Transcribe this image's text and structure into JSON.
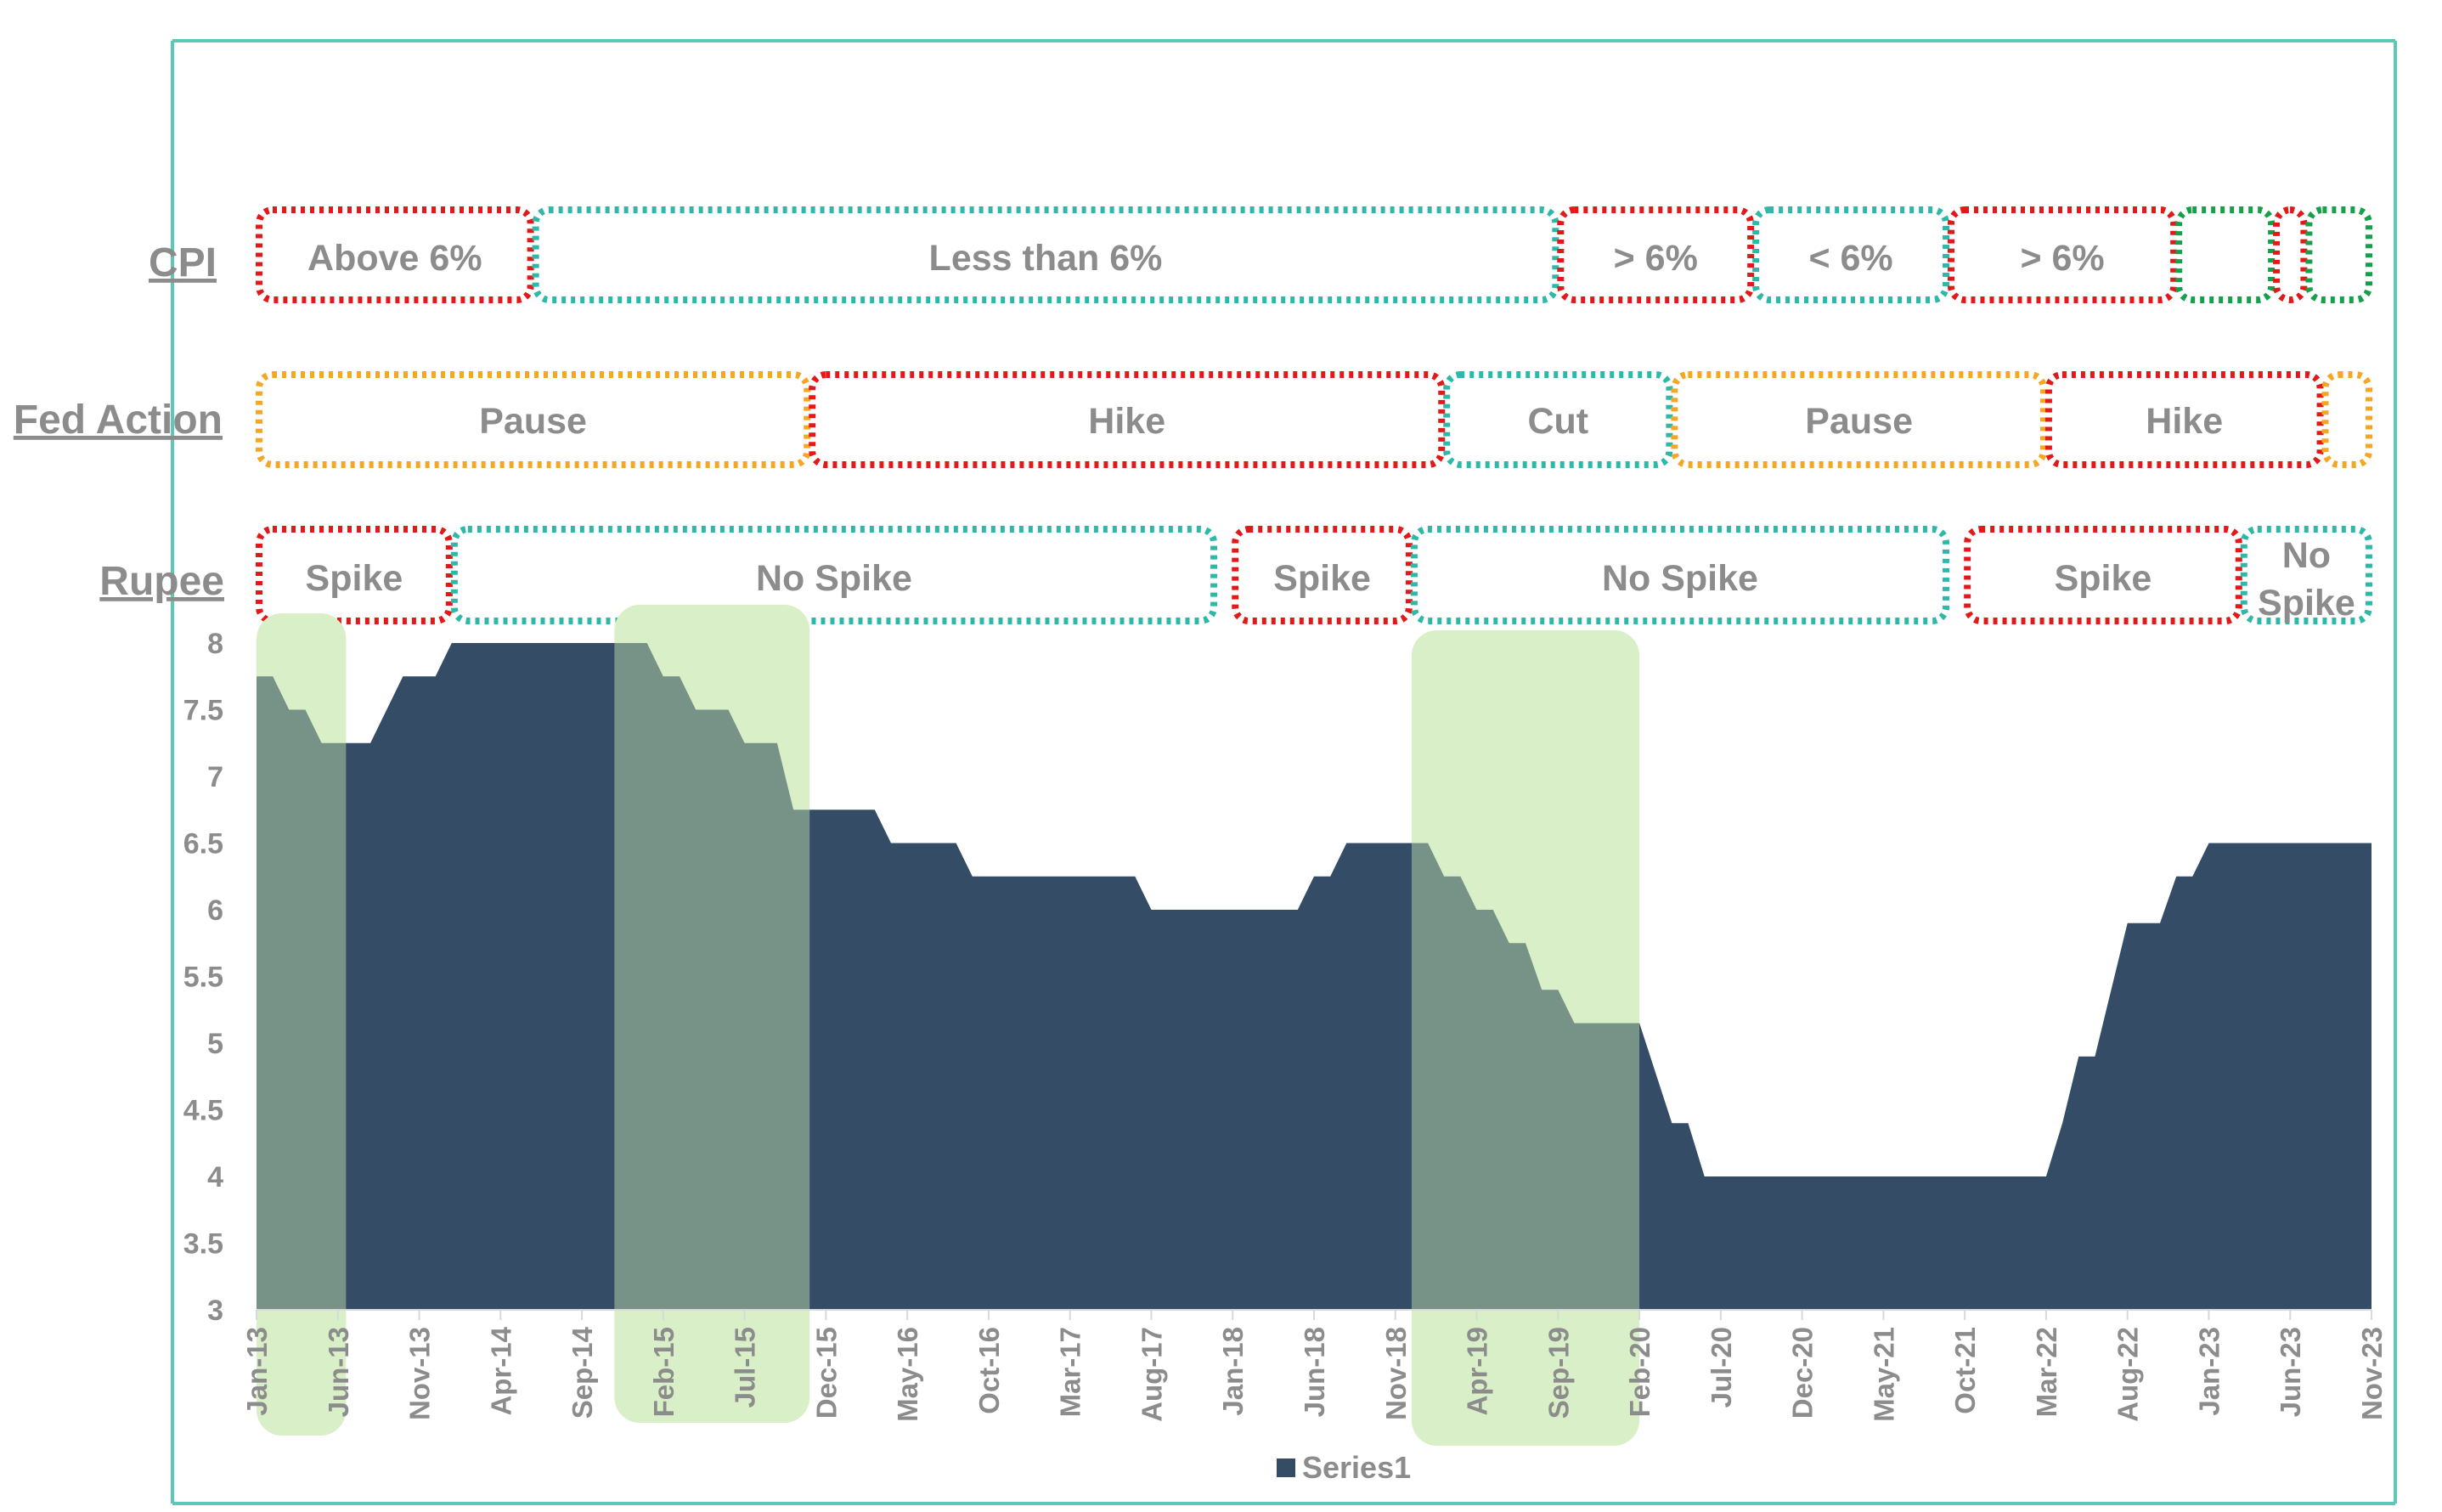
{
  "chart_data": {
    "type": "area",
    "title": "",
    "xlabel": "",
    "ylabel": "",
    "ylim": [
      3,
      8
    ],
    "yticks": [
      3,
      3.5,
      4,
      4.5,
      5,
      5.5,
      6,
      6.5,
      7,
      7.5,
      8
    ],
    "xtick_labels": [
      "Jan-13",
      "Jun-13",
      "Nov-13",
      "Apr-14",
      "Sep-14",
      "Feb-15",
      "Jul-15",
      "Dec-15",
      "May-16",
      "Oct-16",
      "Mar-17",
      "Aug-17",
      "Jan-18",
      "Jun-18",
      "Nov-18",
      "Apr-19",
      "Sep-19",
      "Feb-20",
      "Jul-20",
      "Dec-20",
      "May-21",
      "Oct-21",
      "Mar-22",
      "Aug-22",
      "Jan-23",
      "Jun-23",
      "Nov-23"
    ],
    "x_start": "Jan-13",
    "x_end": "Nov-23",
    "legend": {
      "label": "Series1",
      "position": "bottom",
      "color": "#344c66"
    },
    "series": [
      {
        "name": "Series1",
        "color": "#344c66",
        "steps": [
          {
            "month": 0,
            "value": 7.75
          },
          {
            "month": 1,
            "value": 7.75
          },
          {
            "month": 2,
            "value": 7.5
          },
          {
            "month": 3,
            "value": 7.5
          },
          {
            "month": 4,
            "value": 7.25
          },
          {
            "month": 7,
            "value": 7.25
          },
          {
            "month": 9,
            "value": 7.75
          },
          {
            "month": 11,
            "value": 7.75
          },
          {
            "month": 12,
            "value": 8.0
          },
          {
            "month": 24,
            "value": 8.0
          },
          {
            "month": 25,
            "value": 7.75
          },
          {
            "month": 26,
            "value": 7.75
          },
          {
            "month": 27,
            "value": 7.5
          },
          {
            "month": 29,
            "value": 7.5
          },
          {
            "month": 30,
            "value": 7.25
          },
          {
            "month": 32,
            "value": 7.25
          },
          {
            "month": 33,
            "value": 6.75
          },
          {
            "month": 38,
            "value": 6.75
          },
          {
            "month": 39,
            "value": 6.5
          },
          {
            "month": 43,
            "value": 6.5
          },
          {
            "month": 44,
            "value": 6.25
          },
          {
            "month": 54,
            "value": 6.25
          },
          {
            "month": 55,
            "value": 6.0
          },
          {
            "month": 64,
            "value": 6.0
          },
          {
            "month": 65,
            "value": 6.25
          },
          {
            "month": 66,
            "value": 6.25
          },
          {
            "month": 67,
            "value": 6.5
          },
          {
            "month": 72,
            "value": 6.5
          },
          {
            "month": 73,
            "value": 6.25
          },
          {
            "month": 74,
            "value": 6.25
          },
          {
            "month": 75,
            "value": 6.0
          },
          {
            "month": 76,
            "value": 6.0
          },
          {
            "month": 77,
            "value": 5.75
          },
          {
            "month": 78,
            "value": 5.75
          },
          {
            "month": 79,
            "value": 5.4
          },
          {
            "month": 80,
            "value": 5.4
          },
          {
            "month": 81,
            "value": 5.15
          },
          {
            "month": 85,
            "value": 5.15
          },
          {
            "month": 87,
            "value": 4.4
          },
          {
            "month": 88,
            "value": 4.4
          },
          {
            "month": 89,
            "value": 4.0
          },
          {
            "month": 110,
            "value": 4.0
          },
          {
            "month": 111,
            "value": 4.4
          },
          {
            "month": 112,
            "value": 4.9
          },
          {
            "month": 113,
            "value": 4.9
          },
          {
            "month": 115,
            "value": 5.9
          },
          {
            "month": 117,
            "value": 5.9
          },
          {
            "month": 118,
            "value": 6.25
          },
          {
            "month": 119,
            "value": 6.25
          },
          {
            "month": 120,
            "value": 6.5
          },
          {
            "month": 130,
            "value": 6.5
          }
        ]
      }
    ],
    "rows": [
      {
        "id": "cpi",
        "label": "CPI",
        "segments": [
          {
            "text": "Above 6%",
            "start": 0,
            "end": 17,
            "color": "#e31818"
          },
          {
            "text": "Less than 6%",
            "start": 17,
            "end": 80,
            "color": "#2eb8a8"
          },
          {
            "text": "> 6%",
            "start": 80,
            "end": 92,
            "color": "#e31818"
          },
          {
            "text": "< 6%",
            "start": 92,
            "end": 104,
            "color": "#2eb8a8"
          },
          {
            "text": "> 6%",
            "start": 104,
            "end": 118,
            "color": "#e31818"
          },
          {
            "text": "",
            "start": 118,
            "end": 124,
            "color": "#16a04a"
          },
          {
            "text": "",
            "start": 124,
            "end": 126,
            "color": "#e31818"
          },
          {
            "text": "",
            "start": 126,
            "end": 130,
            "color": "#16a04a"
          }
        ]
      },
      {
        "id": "fed-action",
        "label": "Fed Action",
        "segments": [
          {
            "text": "Pause",
            "start": 0,
            "end": 34,
            "color": "#f5a623"
          },
          {
            "text": "Hike",
            "start": 34,
            "end": 73,
            "color": "#e31818"
          },
          {
            "text": "Cut",
            "start": 73,
            "end": 87,
            "color": "#2eb8a8"
          },
          {
            "text": "Pause",
            "start": 87,
            "end": 110,
            "color": "#f5a623"
          },
          {
            "text": "Hike",
            "start": 110,
            "end": 127,
            "color": "#e31818"
          },
          {
            "text": "",
            "start": 127,
            "end": 130,
            "color": "#f5a623"
          }
        ]
      },
      {
        "id": "rupee",
        "label": "Rupee",
        "segments": [
          {
            "text": "Spike",
            "start": 0,
            "end": 12,
            "color": "#e31818"
          },
          {
            "text": "No Spike",
            "start": 12,
            "end": 59,
            "color": "#2eb8a8"
          },
          {
            "text": "Spike",
            "start": 60,
            "end": 71,
            "color": "#e31818"
          },
          {
            "text": "No Spike",
            "start": 71,
            "end": 104,
            "color": "#2eb8a8"
          },
          {
            "text": "Spike",
            "start": 105,
            "end": 122,
            "color": "#e31818"
          },
          {
            "text": "No Spike",
            "start": 122,
            "end": 130,
            "color": "#2eb8a8"
          }
        ]
      }
    ],
    "highlights": [
      {
        "start": 0,
        "end": 5.5
      },
      {
        "start": 22,
        "end": 34
      },
      {
        "start": 71,
        "end": 85
      }
    ]
  }
}
